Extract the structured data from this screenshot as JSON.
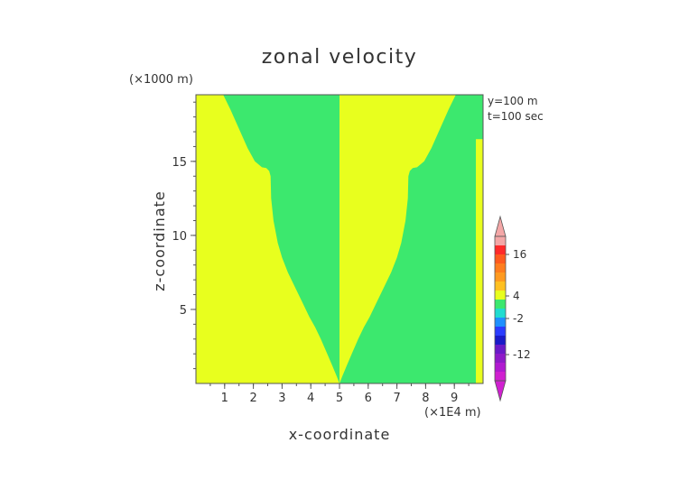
{
  "chart_data": {
    "type": "heatmap",
    "title": "zonal velocity",
    "xlabel": "x-coordinate",
    "ylabel": "z-coordinate",
    "x_unit": "(×1E4 m)",
    "y_unit": "(×1000 m)",
    "annotations": [
      "y=100 m",
      "t=100 sec"
    ],
    "xlim": [
      0,
      10
    ],
    "ylim": [
      0,
      19.5
    ],
    "x_ticks": [
      "1",
      "2",
      "3",
      "4",
      "5",
      "6",
      "7",
      "8",
      "9"
    ],
    "y_ticks": [
      "5",
      "10",
      "15"
    ],
    "colorbar": {
      "labels": [
        "16",
        "4",
        "-2",
        "-12"
      ],
      "colors": [
        "#f4a7a7",
        "#ff2a2a",
        "#ff5a1e",
        "#ff7d1e",
        "#ff9a20",
        "#ffc021",
        "#e8ff1e",
        "#3ce86e",
        "#20dcd0",
        "#1e90ff",
        "#2a3cff",
        "#1a1ac8",
        "#6a1ac8",
        "#8e1ac8",
        "#b01ad0",
        "#d020d0"
      ]
    },
    "regions": [
      {
        "name": "positive",
        "color": "#e8ff1e"
      },
      {
        "name": "negative",
        "color": "#3ce86e"
      }
    ],
    "boundary_left_x": [
      2.3,
      2.45,
      2.55,
      2.6,
      2.62,
      2.7,
      2.85,
      3.0,
      3.2,
      3.45,
      3.7,
      3.95,
      4.15,
      4.35,
      4.55,
      4.75,
      4.9,
      5.0
    ],
    "boundary_left_z": [
      14.6,
      14.55,
      14.35,
      14.0,
      12.5,
      11.0,
      9.5,
      8.5,
      7.5,
      6.5,
      5.5,
      4.5,
      3.8,
      3.0,
      2.1,
      1.2,
      0.5,
      0.0
    ],
    "boundary_top_left_x": [
      0.95,
      1.2,
      1.5,
      1.8,
      2.05,
      2.3
    ],
    "boundary_top_left_z": [
      19.5,
      18.5,
      17.2,
      15.9,
      15.0,
      14.6
    ]
  }
}
